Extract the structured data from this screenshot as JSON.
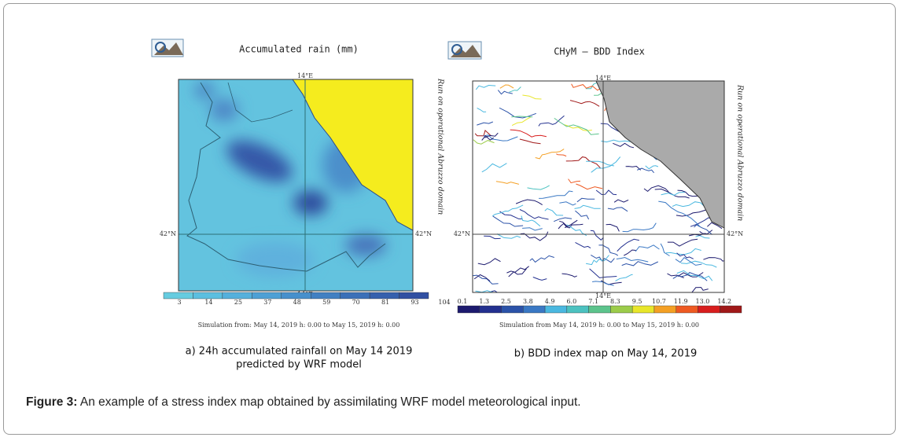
{
  "figure": {
    "left": {
      "title": "Accumulated rain (mm)",
      "side_text": "Run on operational Abruzzo domain",
      "lon_label": "14°E",
      "lat_label": "42°N",
      "colorbar_labels": [
        "3",
        "14",
        "25",
        "37",
        "48",
        "59",
        "70",
        "81",
        "93",
        "104"
      ],
      "simulation": "Simulation from: May 14, 2019 h: 0.00 to May 15, 2019 h: 0.00",
      "subcaption": [
        "a) 24h accumulated rainfall on May 14 2019",
        "predicted by WRF model"
      ]
    },
    "right": {
      "title": "CHyM – BDD Index",
      "side_text": "Run on operational Abruzzo domain",
      "lon_label": "14°E",
      "lat_label": "42°N",
      "colorbar_labels": [
        "0.1",
        "1.3",
        "2.5",
        "3.8",
        "4.9",
        "6.0",
        "7.1",
        "8.3",
        "9.5",
        "10.7",
        "11.9",
        "13.0",
        "14.2"
      ],
      "simulation": "Simulation from May 14, 2019 h: 0.00 to May 15, 2019 h: 0.00",
      "subcaption": "b) BDD index map on May 14, 2019"
    },
    "caption": {
      "label": "Figure 3:",
      "text": " An example of a stress index map obtained by assimilating WRF model meteorological input."
    }
  }
}
